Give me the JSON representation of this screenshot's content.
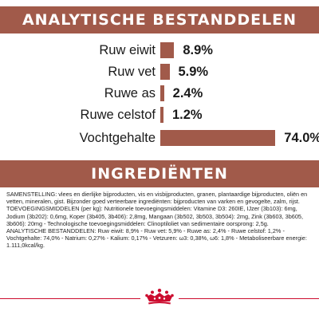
{
  "analysis": {
    "title": "ANALYTISCHE BESTANDDELEN",
    "bar_color": "#a15a4a",
    "rows": [
      {
        "label": "Ruw eiwit",
        "value": "8.9%",
        "percent": 8.9
      },
      {
        "label": "Ruw vet",
        "value": "5.9%",
        "percent": 5.9
      },
      {
        "label": "Ruwe as",
        "value": "2.4%",
        "percent": 2.4
      },
      {
        "label": "Ruwe celstof",
        "value": "1.2%",
        "percent": 1.2
      },
      {
        "label": "Vochtgehalte",
        "value": "74.0%",
        "percent": 74.0
      }
    ]
  },
  "ingredients": {
    "title": "INGREDIËNTEN",
    "composition": "SAMENSTELLING: vlees en dierlijke bijproducten, vis en visbijproducten, granen, plantaardige bijproducten, oliën en vetten, mineralen, gist. Bijzonder goed verteerbare ingrediënten: bijproducten van varken en gevogelte, zalm, rijst.",
    "additives": "TOEVOEGINGSMIDDELEN (per kg): Nutritionele toevoegingsmiddelen: Vitamine D3: 260IE, IJzer (3b103): 6mg, Jodium (3b202): 0,6mg, Koper (3b405, 3b406): 2,8mg, Mangaan (3b502, 3b503, 3b504): 2mg, Zink (3b603, 3b605, 3b606): 20mg - Technologische toevoegingsmiddelen: Clinoptiloliet van sedimentaire oorsprong: 2,5g.",
    "analysis_text": "ANALYTISCHE BESTANDDELEN: Ruw eiwit: 8,9% - Ruw vet: 5,9% - Ruwe as: 2,4% - Ruwe celstof: 1,2% - Vochtgehalte: 74,0% - Natrium: 0,27% - Kalium: 0,17% - Vetzuren: ω3: 0,38%, ω6: 1,8% - Metaboliseerbare energie: 1.111,0kcal/kg."
  },
  "brand": {
    "logo_name": "Royal Canin crown logo",
    "accent_color": "#cc0c2f"
  }
}
